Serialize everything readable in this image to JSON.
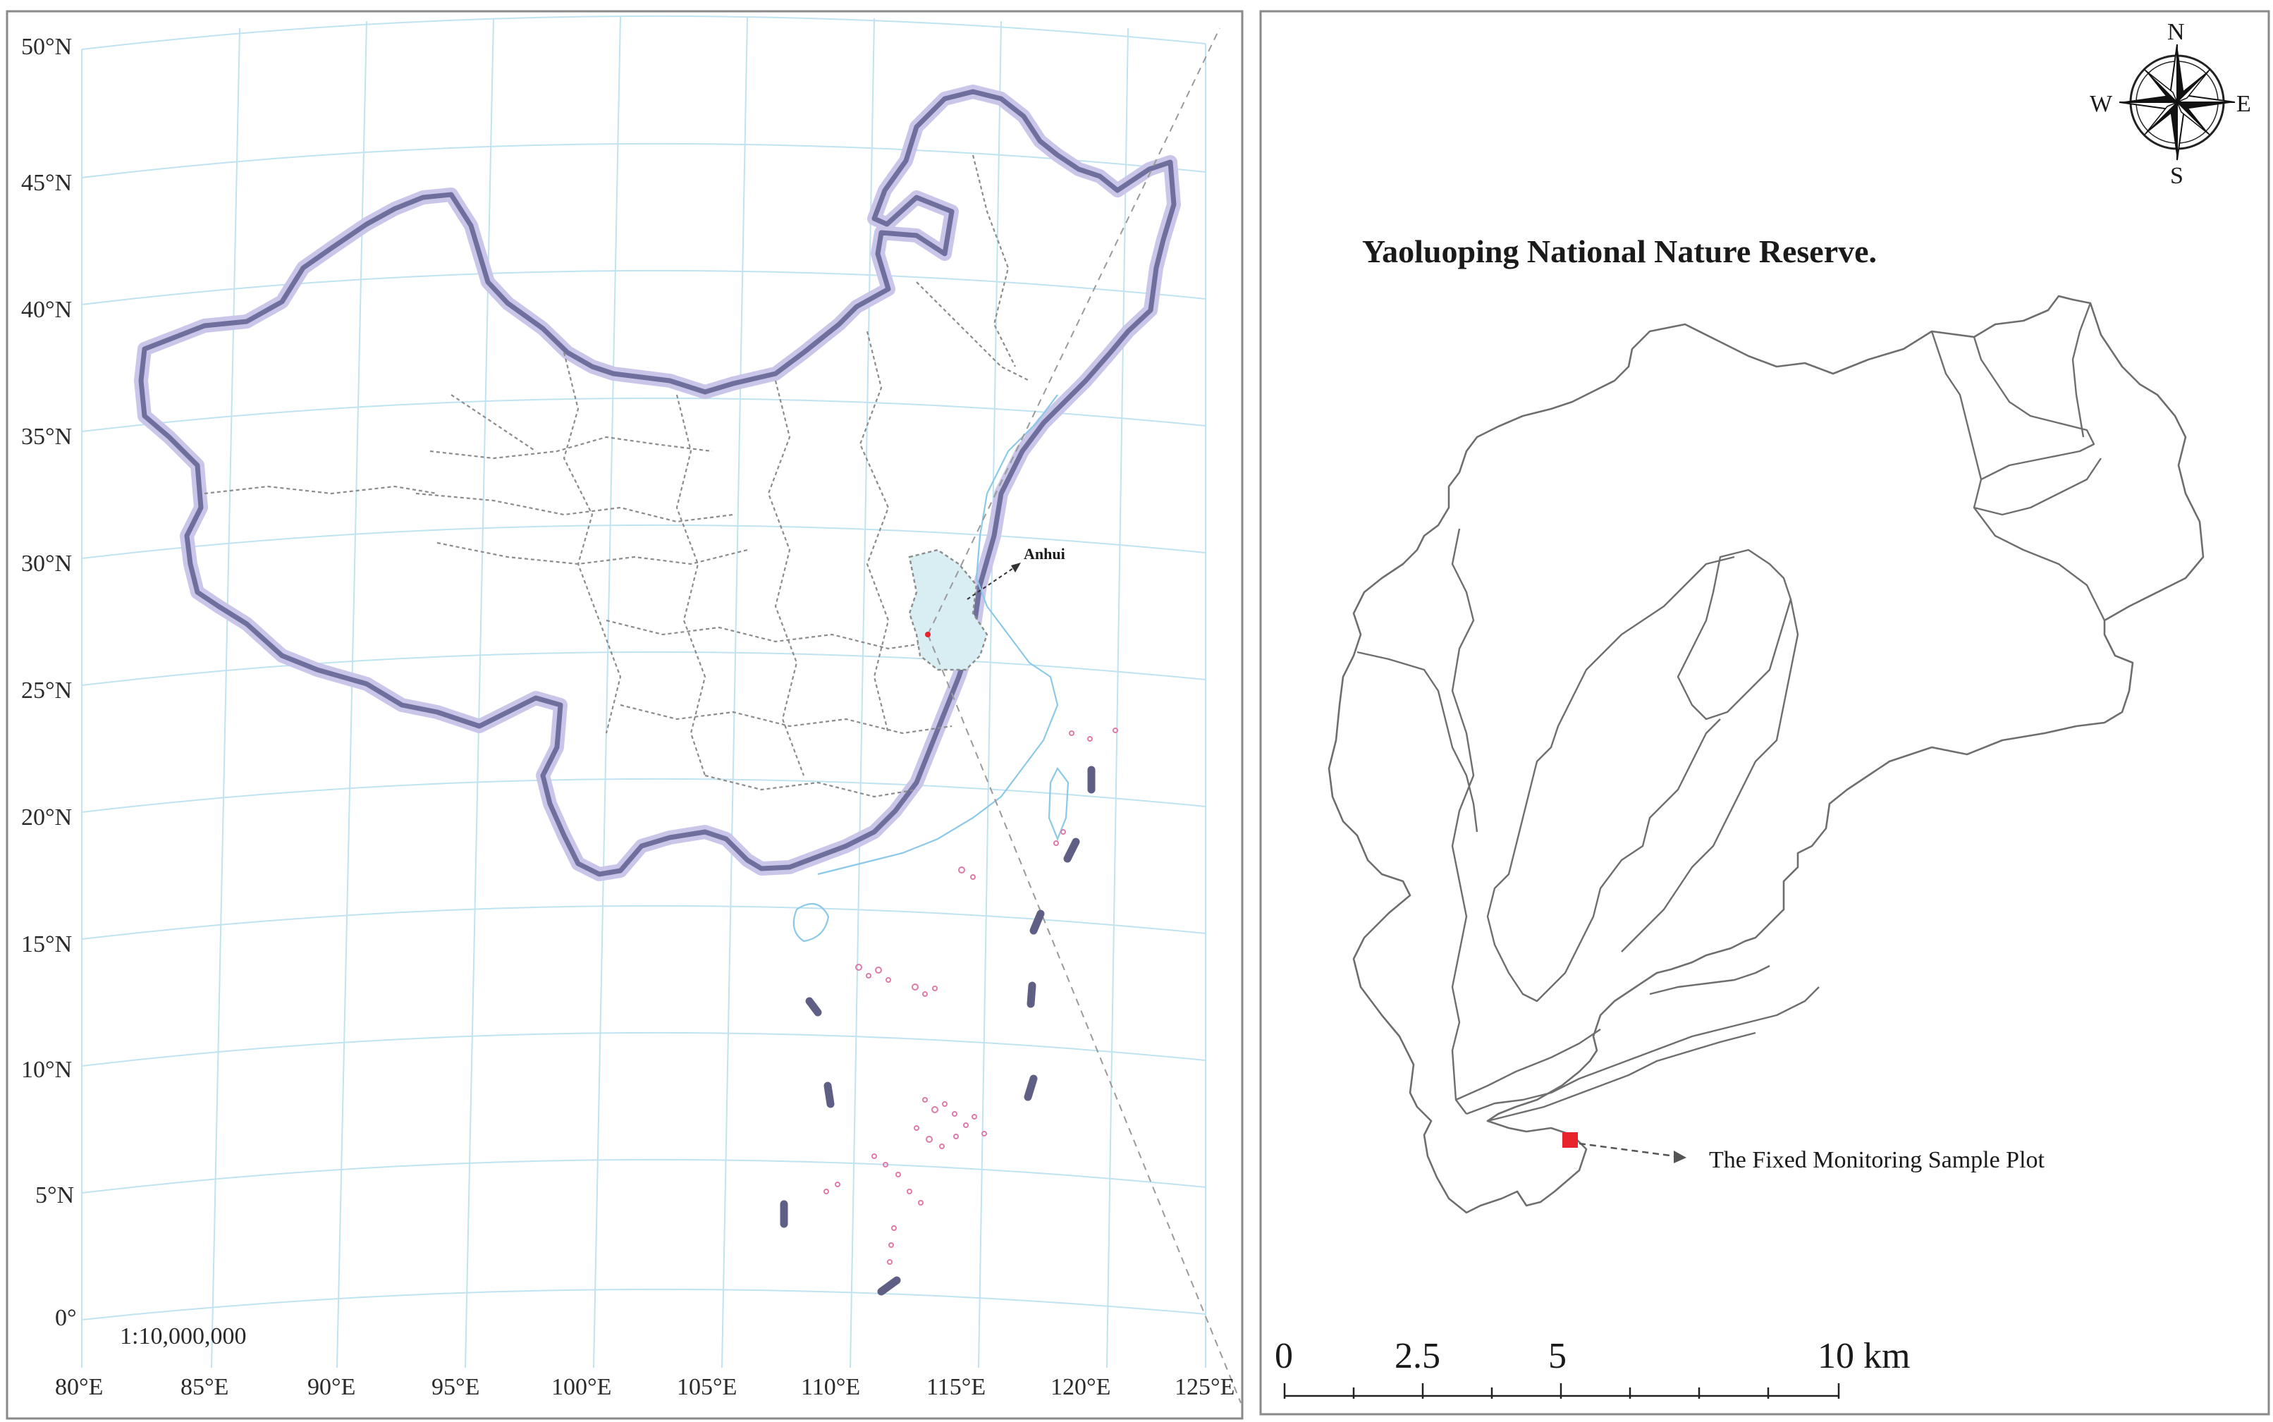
{
  "left_map": {
    "lat_labels": [
      "50°N",
      "45°N",
      "40°N",
      "35°N",
      "30°N",
      "25°N",
      "20°N",
      "15°N",
      "10°N",
      "5°N",
      "0°"
    ],
    "lon_labels": [
      "80°E",
      "85°E",
      "90°E",
      "95°E",
      "100°E",
      "105°E",
      "110°E",
      "115°E",
      "120°E",
      "125°E"
    ],
    "scale_text": "1:10,000,000",
    "province_label": "Anhui",
    "colors": {
      "border": "#6f6f9e",
      "coast": "#8cc8e8",
      "graticule": "#bfe3f0",
      "highlight": "#d8eef2",
      "islands": "#e07aa8"
    }
  },
  "right_map": {
    "title": "Yaoluoping National Nature Reserve.",
    "plot_label": "The Fixed Monitoring Sample Plot",
    "compass": {
      "n": "N",
      "s": "S",
      "e": "E",
      "w": "W"
    },
    "scalebar": {
      "labels": [
        "0",
        "2.5",
        "5",
        "10 km"
      ]
    },
    "colors": {
      "plot_marker": "#e8232b"
    }
  }
}
